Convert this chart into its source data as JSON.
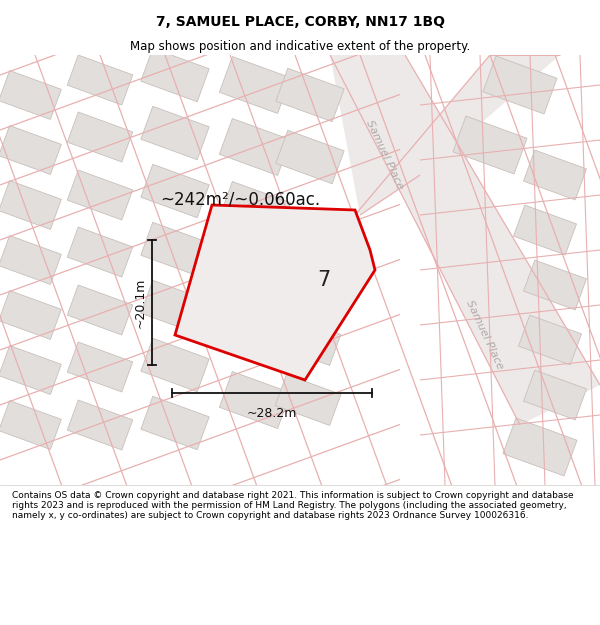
{
  "title": "7, SAMUEL PLACE, CORBY, NN17 1BQ",
  "subtitle": "Map shows position and indicative extent of the property.",
  "footer": "Contains OS data © Crown copyright and database right 2021. This information is subject to Crown copyright and database rights 2023 and is reproduced with the permission of HM Land Registry. The polygons (including the associated geometry, namely x, y co-ordinates) are subject to Crown copyright and database rights 2023 Ordnance Survey 100026316.",
  "area_label": "~242m²/~0.060ac.",
  "width_label": "~28.2m",
  "height_label": "~20.1m",
  "plot_number": "7",
  "map_bg": "#f0edec",
  "building_fill": "#e2dedc",
  "building_edge": "#c8c0bc",
  "road_fill": "#f8f5f4",
  "highlight_color": "#dd0000",
  "street_line_color": "#e8b0b0",
  "street_line_lw": 0.9,
  "dim_color": "#111111",
  "label_gray": "#b0aaaa",
  "title_fontsize": 10,
  "subtitle_fontsize": 8.5,
  "footer_fontsize": 6.5,
  "area_fontsize": 12,
  "dim_fontsize": 9,
  "plot_label_fontsize": 15,
  "samuel_label_fontsize": 8
}
